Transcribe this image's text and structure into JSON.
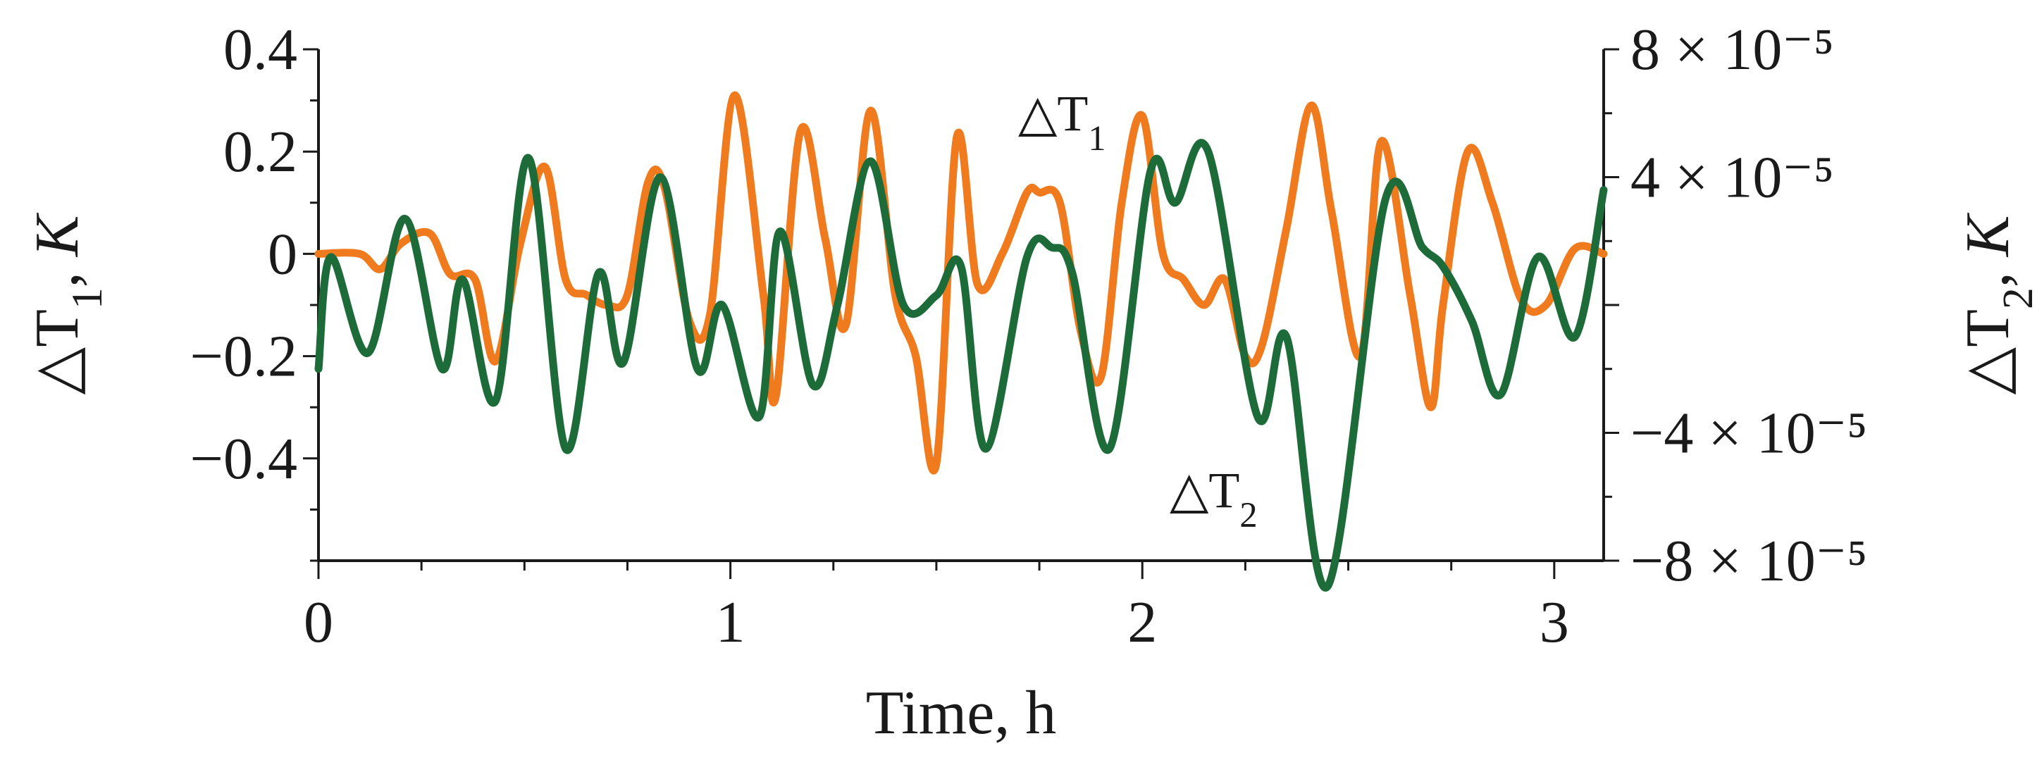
{
  "chart_data": {
    "type": "line",
    "title": "",
    "xlabel": "Time, h",
    "xlim": [
      0,
      3.12
    ],
    "x_ticks": [
      "0",
      "1",
      "2",
      "3"
    ],
    "left_axis": {
      "label": "△T₁, K",
      "label_parts": {
        "symbol": "△T",
        "sub": "1",
        "unit": ", K"
      },
      "ylim": [
        -0.6,
        0.4
      ],
      "ticks": [
        "0.4",
        "0.2",
        "0",
        "−0.2",
        "−0.4"
      ]
    },
    "right_axis": {
      "label": "△T₂, K",
      "label_parts": {
        "symbol": "△T",
        "sub": "2",
        "unit": ", K"
      },
      "ylim": [
        -8e-05,
        8e-05
      ],
      "ticks": [
        "8 × 10⁻⁵",
        "4 × 10⁻⁵",
        "−4 × 10⁻⁵",
        "−8 × 10⁻⁵"
      ]
    },
    "grid": false,
    "legend": "none",
    "series": [
      {
        "name": "△T₁",
        "label_parts": {
          "symbol": "△T",
          "sub": "1"
        },
        "axis": "left",
        "color": "#f07a1e",
        "x": [
          0,
          0.1,
          0.15,
          0.2,
          0.27,
          0.32,
          0.38,
          0.43,
          0.49,
          0.55,
          0.6,
          0.65,
          0.7,
          0.75,
          0.8,
          0.84,
          0.9,
          0.95,
          1.01,
          1.08,
          1.11,
          1.17,
          1.23,
          1.28,
          1.34,
          1.4,
          1.45,
          1.5,
          1.55,
          1.6,
          1.66,
          1.72,
          1.75,
          1.8,
          1.85,
          1.9,
          1.95,
          2.0,
          2.05,
          2.1,
          2.15,
          2.2,
          2.25,
          2.29,
          2.35,
          2.41,
          2.46,
          2.53,
          2.58,
          2.65,
          2.7,
          2.73,
          2.79,
          2.85,
          2.92,
          2.98,
          3.05,
          3.12
        ],
        "y": [
          0,
          0,
          -0.03,
          0.02,
          0.04,
          -0.04,
          -0.05,
          -0.21,
          0.02,
          0.17,
          -0.05,
          -0.08,
          -0.1,
          -0.08,
          0.14,
          0.13,
          -0.13,
          -0.12,
          0.31,
          -0.08,
          -0.28,
          0.24,
          0.03,
          -0.14,
          0.28,
          -0.08,
          -0.2,
          -0.41,
          0.23,
          -0.06,
          0.0,
          0.12,
          0.12,
          0.1,
          -0.15,
          -0.24,
          0.1,
          0.27,
          0.0,
          -0.05,
          -0.1,
          -0.05,
          -0.2,
          -0.18,
          0.05,
          0.29,
          0.08,
          -0.2,
          0.22,
          -0.08,
          -0.3,
          -0.1,
          0.2,
          0.1,
          -0.09,
          -0.1,
          0.01,
          0.0
        ]
      },
      {
        "name": "△T₂",
        "label_parts": {
          "symbol": "△T",
          "sub": "2"
        },
        "axis": "right",
        "color": "#1e6b3a",
        "x": [
          0,
          0.03,
          0.12,
          0.21,
          0.3,
          0.35,
          0.43,
          0.51,
          0.6,
          0.68,
          0.74,
          0.83,
          0.92,
          0.98,
          1.07,
          1.12,
          1.2,
          1.26,
          1.34,
          1.42,
          1.5,
          1.56,
          1.62,
          1.72,
          1.78,
          1.83,
          1.92,
          2.02,
          2.08,
          2.16,
          2.28,
          2.35,
          2.45,
          2.59,
          2.68,
          2.73,
          2.8,
          2.87,
          2.96,
          3.05,
          3.12
        ],
        "y": [
          -2e-05,
          1.5e-05,
          -1.5e-05,
          2.7e-05,
          -2e-05,
          8e-06,
          -3e-05,
          4.6e-05,
          -4.5e-05,
          1e-05,
          -1.8e-05,
          4e-05,
          -2e-05,
          0.0,
          -3.5e-05,
          2.3e-05,
          -2.5e-05,
          0.0,
          4.5e-05,
          0.0,
          3e-06,
          1.2e-05,
          -4.5e-05,
          1.5e-05,
          1.8e-05,
          1e-05,
          -4.5e-05,
          4.2e-05,
          3.2e-05,
          4.8e-05,
          -3.5e-05,
          -1e-05,
          -8.8e-05,
          3.3e-05,
          1.8e-05,
          1.2e-05,
          -5e-06,
          -2.8e-05,
          1.5e-05,
          -1e-05,
          3.6e-05
        ]
      }
    ]
  }
}
